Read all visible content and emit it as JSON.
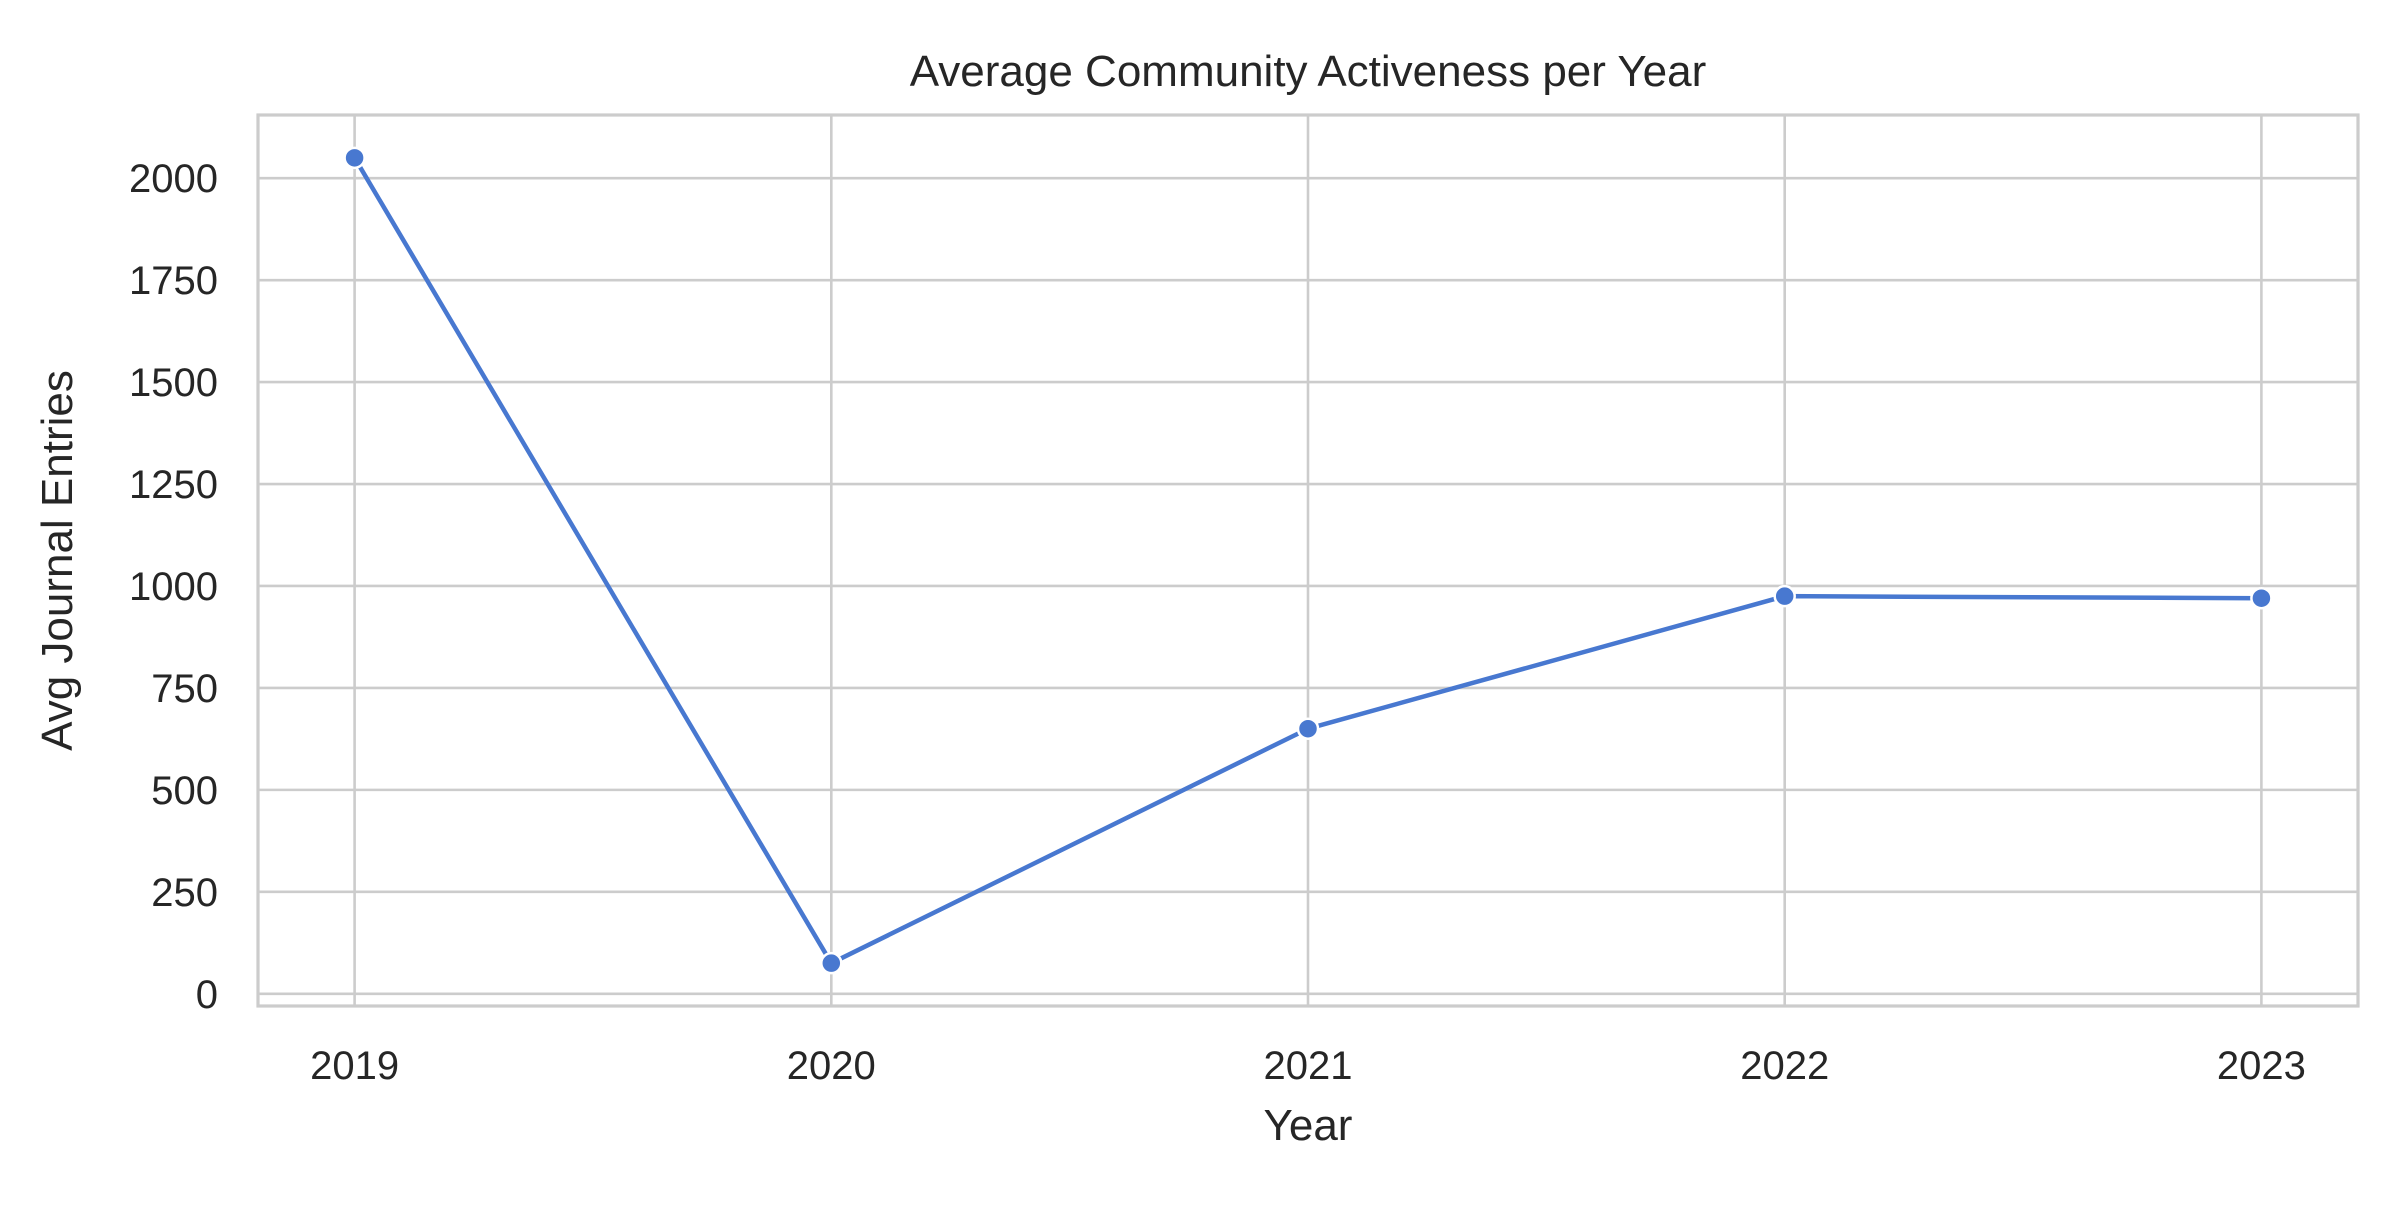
{
  "chart_data": {
    "type": "line",
    "title": "Average Community Activeness per Year",
    "xlabel": "Year",
    "ylabel": "Avg Journal Entries",
    "categories": [
      "2019",
      "2020",
      "2021",
      "2022",
      "2023"
    ],
    "series": [
      {
        "values": [
          2050,
          75,
          650,
          975,
          970
        ]
      }
    ],
    "y_ticks": [
      0,
      250,
      500,
      750,
      1000,
      1250,
      1500,
      1750,
      2000
    ],
    "ylim": [
      -30,
      2155
    ],
    "grid": true,
    "line_color": "#4878d0"
  }
}
